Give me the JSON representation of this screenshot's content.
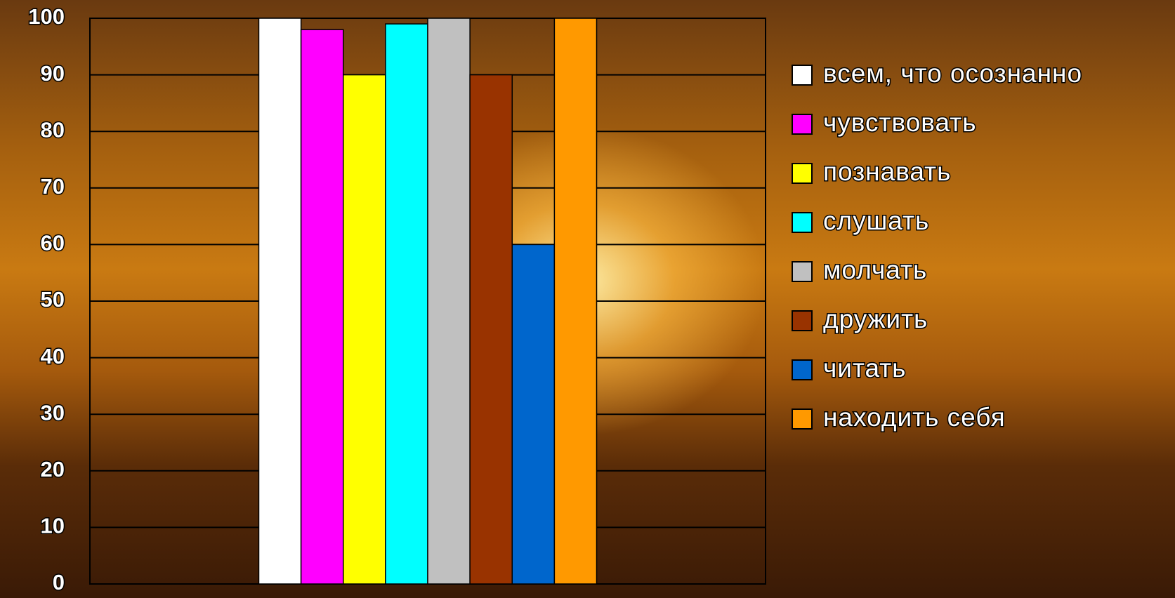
{
  "chart_data": {
    "type": "bar",
    "categories": [
      null
    ],
    "series": [
      {
        "name": "всем, что осознанно",
        "color": "#ffffff",
        "values": [
          100
        ]
      },
      {
        "name": "чувствовать",
        "color": "#ff00ff",
        "values": [
          98
        ]
      },
      {
        "name": "познавать",
        "color": "#ffff00",
        "values": [
          90
        ]
      },
      {
        "name": "слушать",
        "color": "#00ffff",
        "values": [
          99
        ]
      },
      {
        "name": "молчать",
        "color": "#c0c0c0",
        "values": [
          100
        ]
      },
      {
        "name": "дружить",
        "color": "#993300",
        "values": [
          90
        ]
      },
      {
        "name": "читать",
        "color": "#0066cc",
        "values": [
          60
        ]
      },
      {
        "name": "находить себя",
        "color": "#ff9900",
        "values": [
          100
        ]
      }
    ],
    "ylim": [
      0,
      100
    ],
    "yticks": [
      0,
      10,
      20,
      30,
      40,
      50,
      60,
      70,
      80,
      90,
      100
    ],
    "grid": true,
    "legend": "right"
  }
}
